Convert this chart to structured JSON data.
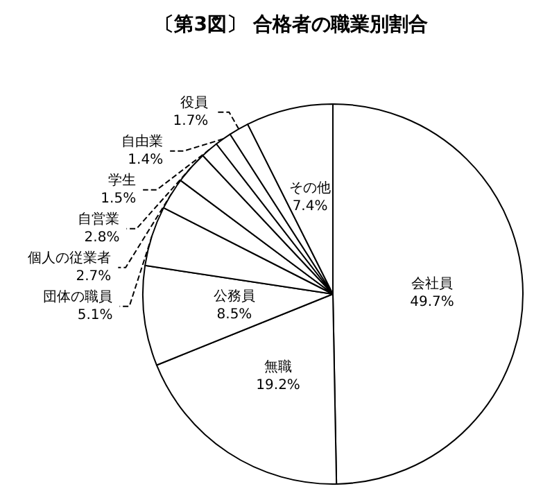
{
  "chart_data": {
    "type": "pie",
    "title": "〔第3図〕 合格者の職業別割合",
    "categories": [
      "会社員",
      "無職",
      "公務員",
      "団体の職員",
      "個人の従業者",
      "自営業",
      "学生",
      "自由業",
      "役員",
      "その他"
    ],
    "values": [
      49.7,
      19.2,
      8.5,
      5.1,
      2.7,
      2.8,
      1.5,
      1.4,
      1.7,
      7.4
    ],
    "value_labels": [
      "49.7%",
      "19.2%",
      "8.5%",
      "5.1%",
      "2.7%",
      "2.8%",
      "1.5%",
      "1.4%",
      "1.7%",
      "7.4%"
    ],
    "colors": [
      "#ffffff",
      "#ffffff",
      "#ffffff",
      "#ffffff",
      "#ffffff",
      "#ffffff",
      "#ffffff",
      "#ffffff",
      "#ffffff",
      "#ffffff"
    ],
    "legend": false
  }
}
